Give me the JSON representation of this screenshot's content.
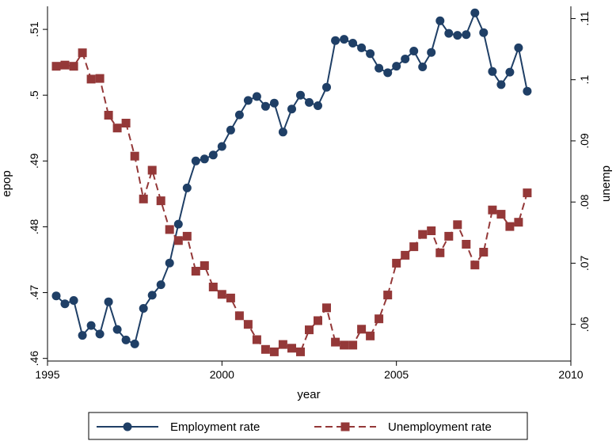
{
  "chart_data": {
    "type": "line",
    "title": "",
    "xlabel": "year",
    "ylabel_left": "epop",
    "ylabel_right": "unemp",
    "xlim": [
      1995,
      2010
    ],
    "xticks": [
      1995,
      2000,
      2005,
      2010
    ],
    "ylim_left": [
      0.4596,
      0.5135
    ],
    "yticks_left": [
      0.46,
      0.47,
      0.48,
      0.49,
      0.5,
      0.51
    ],
    "ytick_labels_left": [
      ".46",
      ".47",
      ".48",
      ".49",
      ".5",
      ".51"
    ],
    "ylim_right": [
      0.054,
      0.112
    ],
    "yticks_right": [
      0.06,
      0.07,
      0.08,
      0.09,
      0.1,
      0.11
    ],
    "ytick_labels_right": [
      ".06",
      ".07",
      ".08",
      ".09",
      ".1",
      ".11"
    ],
    "grid": false,
    "legend_position": "bottom",
    "series": [
      {
        "name": "Employment rate",
        "axis": "left",
        "color": "#1f3f66",
        "marker": "circle",
        "line_style": "solid",
        "x": [
          1995.25,
          1995.5,
          1995.75,
          1996,
          1996.25,
          1996.5,
          1996.75,
          1997,
          1997.25,
          1997.5,
          1997.75,
          1998,
          1998.25,
          1998.5,
          1998.75,
          1999,
          1999.25,
          1999.5,
          1999.75,
          2000,
          2000.25,
          2000.5,
          2000.75,
          2001,
          2001.25,
          2001.5,
          2001.75,
          2002,
          2002.25,
          2002.5,
          2002.75,
          2003,
          2003.25,
          2003.5,
          2003.75,
          2004,
          2004.25,
          2004.5,
          2004.75,
          2005,
          2005.25,
          2005.5,
          2005.75,
          2006,
          2006.25,
          2006.5,
          2006.75,
          2007,
          2007.25,
          2007.5,
          2007.75,
          2008,
          2008.25,
          2008.5,
          2008.75
        ],
        "y": [
          0.4695,
          0.4683,
          0.4688,
          0.4635,
          0.465,
          0.4637,
          0.4686,
          0.4644,
          0.4628,
          0.4622,
          0.4676,
          0.4696,
          0.4712,
          0.4745,
          0.4804,
          0.4859,
          0.49,
          0.4903,
          0.4909,
          0.4922,
          0.4947,
          0.497,
          0.4992,
          0.4998,
          0.4983,
          0.4988,
          0.4944,
          0.4979,
          0.5,
          0.4989,
          0.4984,
          0.5012,
          0.5083,
          0.5085,
          0.5079,
          0.5072,
          0.5063,
          0.5041,
          0.5034,
          0.5044,
          0.5055,
          0.5067,
          0.5043,
          0.5065,
          0.5113,
          0.5094,
          0.5091,
          0.5092,
          0.5125,
          0.5095,
          0.5036,
          0.5016,
          0.5035,
          0.5072,
          0.5006
        ]
      },
      {
        "name": "Unemployment rate",
        "axis": "right",
        "color": "#943838",
        "marker": "square",
        "line_style": "dashed",
        "x": [
          1995.25,
          1995.5,
          1995.75,
          1996,
          1996.25,
          1996.5,
          1996.75,
          1997,
          1997.25,
          1997.5,
          1997.75,
          1998,
          1998.25,
          1998.5,
          1998.75,
          1999,
          1999.25,
          1999.5,
          1999.75,
          2000,
          2000.25,
          2000.5,
          2000.75,
          2001,
          2001.25,
          2001.5,
          2001.75,
          2002,
          2002.25,
          2002.5,
          2002.75,
          2003,
          2003.25,
          2003.5,
          2003.75,
          2004,
          2004.25,
          2004.5,
          2004.75,
          2005,
          2005.25,
          2005.5,
          2005.75,
          2006,
          2006.25,
          2006.5,
          2006.75,
          2007,
          2007.25,
          2007.5,
          2007.75,
          2008,
          2008.25,
          2008.5,
          2008.75
        ],
        "y": [
          0.1022,
          0.1024,
          0.1022,
          0.1044,
          0.1001,
          0.1002,
          0.0942,
          0.0921,
          0.0929,
          0.0875,
          0.0805,
          0.0852,
          0.0802,
          0.0755,
          0.0737,
          0.0744,
          0.0687,
          0.0696,
          0.0661,
          0.0649,
          0.0643,
          0.0614,
          0.06,
          0.0575,
          0.0559,
          0.0555,
          0.0567,
          0.0561,
          0.0555,
          0.0591,
          0.0606,
          0.0627,
          0.0571,
          0.0566,
          0.0566,
          0.0592,
          0.0581,
          0.0609,
          0.0648,
          0.07,
          0.0713,
          0.0727,
          0.0747,
          0.0753,
          0.0717,
          0.0744,
          0.0763,
          0.0731,
          0.0697,
          0.0718,
          0.0787,
          0.078,
          0.076,
          0.0767,
          0.0815
        ]
      }
    ]
  }
}
